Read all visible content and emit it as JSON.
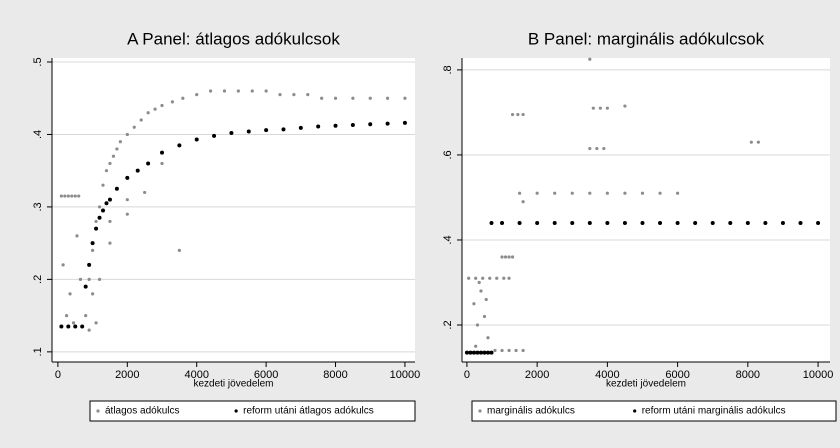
{
  "chart_data": [
    {
      "type": "scatter",
      "title": "A Panel: átlagos adókulcsok",
      "x_label": "kezdeti jövedelem",
      "xlim": [
        -170,
        10290
      ],
      "ylim": [
        0.086,
        0.5055
      ],
      "xticks": [
        0,
        2000,
        4000,
        6000,
        8000,
        10000
      ],
      "yticks": [
        {
          "value": 0.1,
          "label": ".1"
        },
        {
          "value": 0.2,
          "label": ".2"
        },
        {
          "value": 0.3,
          "label": ".3"
        },
        {
          "value": 0.4,
          "label": ".4"
        },
        {
          "value": 0.5,
          "label": ".5"
        }
      ],
      "grid": true,
      "legend": "bottom",
      "series": [
        {
          "name": "átlagos adókulcs",
          "color": "#8c8c8c",
          "x": [
            100,
            200,
            300,
            400,
            500,
            600,
            150,
            350,
            550,
            650,
            250,
            450,
            800,
            900,
            1000,
            1100,
            1200,
            1300,
            1400,
            1500,
            1600,
            1700,
            1800,
            2000,
            2200,
            2400,
            2600,
            2800,
            3000,
            3300,
            3600,
            4000,
            4400,
            4800,
            5200,
            5600,
            6000,
            6400,
            6800,
            7200,
            7600,
            8000,
            8500,
            9000,
            9500,
            10000,
            1200,
            1500,
            2000,
            2500,
            3500,
            900,
            1100,
            1000,
            1500,
            2000,
            3000
          ],
          "y": [
            0.315,
            0.315,
            0.315,
            0.315,
            0.315,
            0.315,
            0.22,
            0.18,
            0.26,
            0.2,
            0.15,
            0.14,
            0.15,
            0.2,
            0.24,
            0.28,
            0.3,
            0.33,
            0.35,
            0.36,
            0.37,
            0.38,
            0.39,
            0.4,
            0.41,
            0.42,
            0.43,
            0.435,
            0.44,
            0.445,
            0.45,
            0.455,
            0.46,
            0.46,
            0.46,
            0.46,
            0.46,
            0.455,
            0.455,
            0.455,
            0.45,
            0.45,
            0.45,
            0.45,
            0.45,
            0.45,
            0.2,
            0.25,
            0.29,
            0.32,
            0.24,
            0.13,
            0.14,
            0.18,
            0.28,
            0.31,
            0.36
          ]
        },
        {
          "name": "reform utáni átlagos adókulcs",
          "color": "#000000",
          "x": [
            100,
            300,
            500,
            700,
            800,
            900,
            1000,
            1100,
            1200,
            1300,
            1400,
            1500,
            1700,
            2000,
            2300,
            2600,
            3000,
            3500,
            4000,
            4500,
            5000,
            5500,
            6000,
            6500,
            7000,
            7500,
            8000,
            8500,
            9000,
            9500,
            10000
          ],
          "y": [
            0.135,
            0.135,
            0.135,
            0.135,
            0.19,
            0.22,
            0.25,
            0.27,
            0.285,
            0.295,
            0.305,
            0.31,
            0.325,
            0.34,
            0.35,
            0.36,
            0.375,
            0.385,
            0.393,
            0.398,
            0.402,
            0.404,
            0.406,
            0.407,
            0.409,
            0.411,
            0.412,
            0.413,
            0.414,
            0.415,
            0.416
          ]
        }
      ]
    },
    {
      "type": "scatter",
      "title": "B Panel: marginális adókulcsok",
      "x_label": "kezdeti jövedelem",
      "xlim": [
        -140,
        10340
      ],
      "ylim": [
        0.113,
        0.828
      ],
      "xticks": [
        0,
        2000,
        4000,
        6000,
        8000,
        10000
      ],
      "yticks": [
        {
          "value": 0.2,
          "label": ".2"
        },
        {
          "value": 0.4,
          "label": ".4"
        },
        {
          "value": 0.6,
          "label": ".6"
        },
        {
          "value": 0.8,
          "label": ".8"
        }
      ],
      "grid": true,
      "legend": "bottom",
      "series": [
        {
          "name": "marginális adókulcs",
          "color": "#8c8c8c",
          "x": [
            50,
            150,
            250,
            350,
            450,
            550,
            650,
            50,
            250,
            450,
            650,
            850,
            1050,
            1200,
            200,
            300,
            400,
            500,
            600,
            350,
            550,
            250,
            1000,
            1100,
            1200,
            1300,
            1600,
            1500,
            2000,
            2500,
            3000,
            3500,
            4000,
            4500,
            5000,
            5500,
            6000,
            1300,
            1450,
            1600,
            7000,
            7500,
            8000,
            8500,
            9000,
            9500,
            10000,
            3600,
            3800,
            4000,
            4500,
            3500,
            3700,
            3900,
            8100,
            8300,
            3500,
            800,
            1000,
            1200,
            1400,
            1600
          ],
          "y": [
            0.135,
            0.135,
            0.135,
            0.135,
            0.135,
            0.135,
            0.135,
            0.31,
            0.31,
            0.31,
            0.31,
            0.31,
            0.31,
            0.31,
            0.25,
            0.2,
            0.28,
            0.22,
            0.17,
            0.3,
            0.26,
            0.15,
            0.36,
            0.36,
            0.36,
            0.36,
            0.49,
            0.51,
            0.51,
            0.51,
            0.51,
            0.51,
            0.51,
            0.51,
            0.51,
            0.51,
            0.51,
            0.695,
            0.695,
            0.695,
            0.44,
            0.44,
            0.44,
            0.44,
            0.44,
            0.44,
            0.44,
            0.71,
            0.71,
            0.71,
            0.715,
            0.615,
            0.615,
            0.615,
            0.63,
            0.63,
            0.825,
            0.14,
            0.14,
            0.14,
            0.14,
            0.14
          ]
        },
        {
          "name": "reform utáni marginális adókulcs",
          "color": "#000000",
          "x": [
            0,
            100,
            200,
            300,
            400,
            500,
            600,
            700,
            700,
            1000,
            1500,
            2000,
            2500,
            3000,
            3500,
            4000,
            4500,
            5000,
            5500,
            6000,
            6500,
            7000,
            7500,
            8000,
            8500,
            9000,
            9500,
            10000
          ],
          "y": [
            0.135,
            0.135,
            0.135,
            0.135,
            0.135,
            0.135,
            0.135,
            0.135,
            0.44,
            0.44,
            0.44,
            0.44,
            0.44,
            0.44,
            0.44,
            0.44,
            0.44,
            0.44,
            0.44,
            0.44,
            0.44,
            0.44,
            0.44,
            0.44,
            0.44,
            0.44,
            0.44,
            0.44
          ]
        }
      ]
    }
  ]
}
